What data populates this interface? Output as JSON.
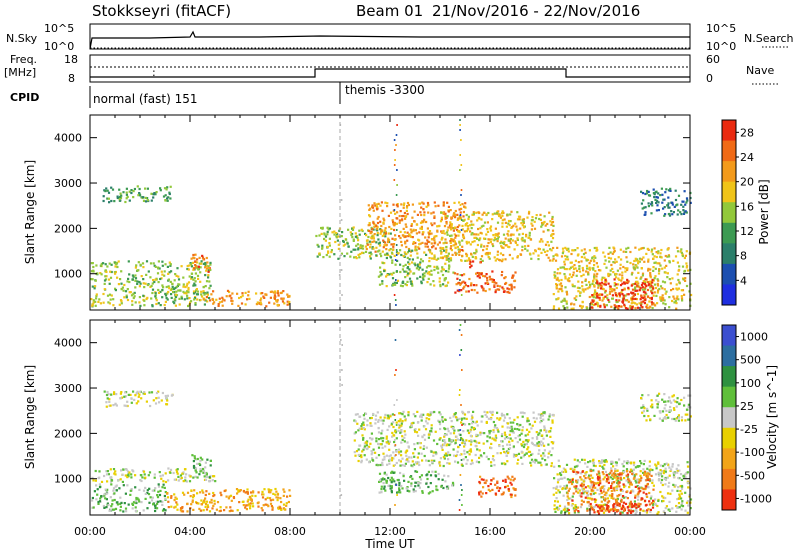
{
  "header": {
    "station": "Stokkseyri (fitACF)",
    "beam": "Beam 01",
    "date_range": "21/Nov/2016 - 22/Nov/2016"
  },
  "top_panels": {
    "nsky_label": "N.Sky",
    "nsearch_label": "N.Search",
    "nsky_ticks": [
      "10^5",
      "10^0"
    ],
    "nsearch_ticks": [
      "10^5",
      "10^0"
    ],
    "freq_label_1": "Freq.",
    "freq_label_2": "[MHz]",
    "freq_ticks": [
      "18",
      "8"
    ],
    "nave_label": "Nave",
    "nave_ticks": [
      "60",
      "0"
    ],
    "cpid_label": "CPID",
    "cpid_modes": [
      {
        "label": "normal (fast) 151",
        "start_hour": 0
      },
      {
        "label": "themis -3300",
        "start_hour": 10
      }
    ]
  },
  "colors": {
    "power": [
      "#1f2fe0",
      "#1c4fb0",
      "#2b7f6a",
      "#3c9a52",
      "#92c83a",
      "#f0c419",
      "#f39a1b",
      "#f06a16",
      "#ea2a10"
    ],
    "velocity": [
      "#3b4fd0",
      "#2c6ea0",
      "#2e9140",
      "#5fbf3a",
      "#c8c8c8",
      "#e8d000",
      "#f2a418",
      "#f07a18",
      "#ee3010"
    ],
    "grey_scatter": "#bdbdbd"
  },
  "chart_data": [
    {
      "type": "heatmap",
      "title": "",
      "xlabel": "Time UT",
      "ylabel": "Slant Range [km]",
      "xlim": [
        0,
        24
      ],
      "ylim": [
        200,
        4500
      ],
      "x_tick_labels": [
        "00:00",
        "04:00",
        "08:00",
        "12:00",
        "16:00",
        "20:00",
        "00:00"
      ],
      "y_tick_labels": [
        "1000",
        "2000",
        "3000",
        "4000"
      ],
      "colorbar": {
        "label": "Power [dB]",
        "ticks": [
          "4",
          "8",
          "12",
          "16",
          "20",
          "24",
          "28"
        ],
        "range": [
          0,
          30
        ]
      },
      "regions": [
        {
          "t0": 0.5,
          "t1": 3.3,
          "r0": 2600,
          "r1": 2950,
          "level": 3
        },
        {
          "t0": 0.0,
          "t1": 4.8,
          "r0": 300,
          "r1": 1300,
          "level": 4
        },
        {
          "t0": 4.0,
          "t1": 4.8,
          "r0": 1050,
          "r1": 1450,
          "level": 7
        },
        {
          "t0": 4.5,
          "t1": 8.0,
          "r0": 300,
          "r1": 650,
          "level": 6
        },
        {
          "t0": 9.0,
          "t1": 12.0,
          "r0": 1350,
          "r1": 2050,
          "level": 4
        },
        {
          "t0": 11.0,
          "t1": 15.0,
          "r0": 1500,
          "r1": 2600,
          "level": 6
        },
        {
          "t0": 11.5,
          "t1": 14.5,
          "r0": 750,
          "r1": 1550,
          "level": 4
        },
        {
          "t0": 14.0,
          "t1": 18.5,
          "r0": 1300,
          "r1": 2400,
          "level": 5
        },
        {
          "t0": 14.5,
          "t1": 17.0,
          "r0": 600,
          "r1": 1100,
          "level": 7
        },
        {
          "t0": 15.0,
          "t1": 15.6,
          "r0": 1150,
          "r1": 1300,
          "level": 8
        },
        {
          "t0": 18.5,
          "t1": 24.0,
          "r0": 250,
          "r1": 1600,
          "level": 5
        },
        {
          "t0": 20.0,
          "t1": 22.5,
          "r0": 250,
          "r1": 900,
          "level": 8
        },
        {
          "t0": 22.0,
          "t1": 24.0,
          "r0": 2300,
          "r1": 2900,
          "level": 2
        }
      ]
    },
    {
      "type": "heatmap",
      "title": "",
      "xlabel": "Time UT",
      "ylabel": "Slant Range [km]",
      "xlim": [
        0,
        24
      ],
      "ylim": [
        200,
        4500
      ],
      "x_tick_labels": [
        "00:00",
        "04:00",
        "08:00",
        "12:00",
        "16:00",
        "20:00",
        "00:00"
      ],
      "y_tick_labels": [
        "1000",
        "2000",
        "3000",
        "4000"
      ],
      "colorbar": {
        "label": "Velocity [m s^-1]",
        "ticks": [
          "1000",
          "500",
          "100",
          "25",
          "-25",
          "-100",
          "-500",
          "-1000"
        ]
      },
      "regions": [
        {
          "t0": 0.5,
          "t1": 3.3,
          "r0": 2600,
          "r1": 2950,
          "level": 4
        },
        {
          "t0": 0.0,
          "t1": 3.0,
          "r0": 300,
          "r1": 900,
          "level": 3
        },
        {
          "t0": 0.0,
          "t1": 5.0,
          "r0": 950,
          "r1": 1250,
          "level": 4
        },
        {
          "t0": 4.0,
          "t1": 4.8,
          "r0": 1050,
          "r1": 1550,
          "level": 3
        },
        {
          "t0": 3.0,
          "t1": 8.0,
          "r0": 300,
          "r1": 800,
          "level": 6
        },
        {
          "t0": 10.5,
          "t1": 18.5,
          "r0": 1300,
          "r1": 2500,
          "level": 4
        },
        {
          "t0": 11.5,
          "t1": 14.5,
          "r0": 700,
          "r1": 1200,
          "level": 3
        },
        {
          "t0": 15.5,
          "t1": 17.0,
          "r0": 600,
          "r1": 1100,
          "level": 7
        },
        {
          "t0": 18.5,
          "t1": 24.0,
          "r0": 250,
          "r1": 1450,
          "level": 4
        },
        {
          "t0": 19.0,
          "t1": 22.5,
          "r0": 300,
          "r1": 1200,
          "level": 7
        },
        {
          "t0": 20.0,
          "t1": 22.0,
          "r0": 250,
          "r1": 500,
          "level": 8
        },
        {
          "t0": 22.0,
          "t1": 24.0,
          "r0": 2300,
          "r1": 2900,
          "level": 4
        }
      ]
    }
  ]
}
